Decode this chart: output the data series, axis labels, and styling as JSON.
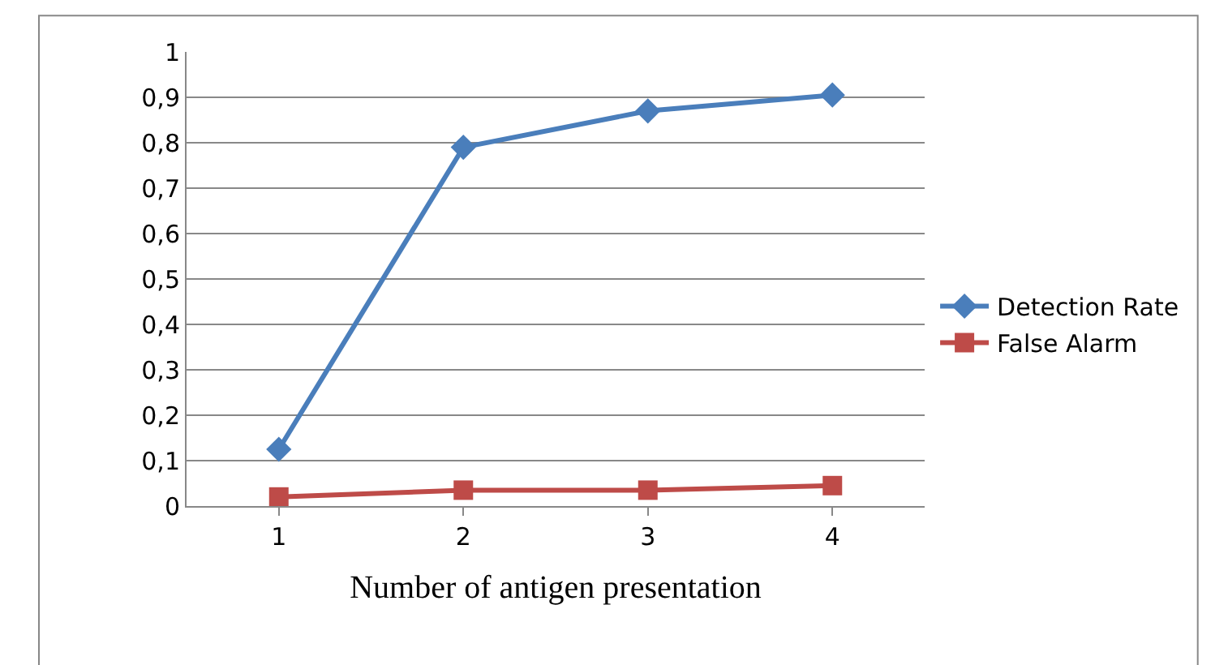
{
  "chart_data": {
    "type": "line",
    "xlabel": "Number of antigen presentation",
    "categories": [
      "1",
      "2",
      "3",
      "4"
    ],
    "series": [
      {
        "name": "Detection Rate",
        "color": "#4a7ebb",
        "values": [
          0.125,
          0.79,
          0.87,
          0.905
        ],
        "marker": "diamond"
      },
      {
        "name": "False Alarm",
        "color": "#be4b48",
        "values": [
          0.02,
          0.035,
          0.035,
          0.045
        ],
        "marker": "square"
      }
    ],
    "ylim": [
      0,
      1
    ],
    "yticks": [
      0,
      {
        "value": 0.1,
        "label": "0,1"
      },
      {
        "value": 0.2,
        "label": "0,2"
      },
      {
        "value": 0.3,
        "label": "0,3"
      },
      {
        "value": 0.4,
        "label": "0,4"
      },
      {
        "value": 0.5,
        "label": "0,5"
      },
      {
        "value": 0.6,
        "label": "0,6"
      },
      {
        "value": 0.7,
        "label": "0,7"
      },
      {
        "value": 0.8,
        "label": "0,8"
      },
      {
        "value": 0.9,
        "label": "0,9"
      },
      1
    ],
    "grid": "y",
    "legend": "right",
    "line_style": "solid"
  }
}
